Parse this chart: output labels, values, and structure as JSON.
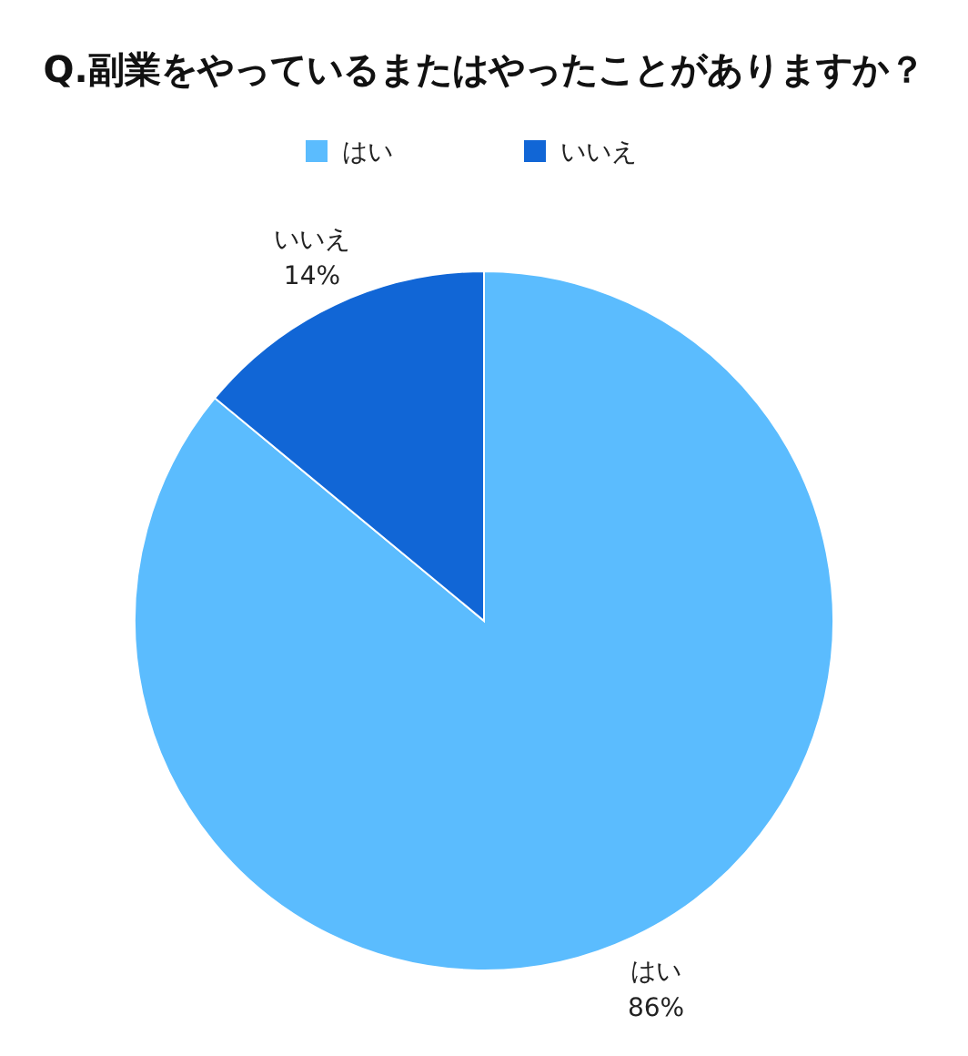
{
  "chart_data": {
    "type": "pie",
    "title": "Q.副業をやっているまたはやったことがありますか？",
    "categories": [
      "はい",
      "いいえ"
    ],
    "values": [
      86,
      14
    ],
    "colors": [
      "#5bbcfe",
      "#1166d6"
    ],
    "value_labels": [
      "86%",
      "14%"
    ],
    "legend": "top"
  }
}
